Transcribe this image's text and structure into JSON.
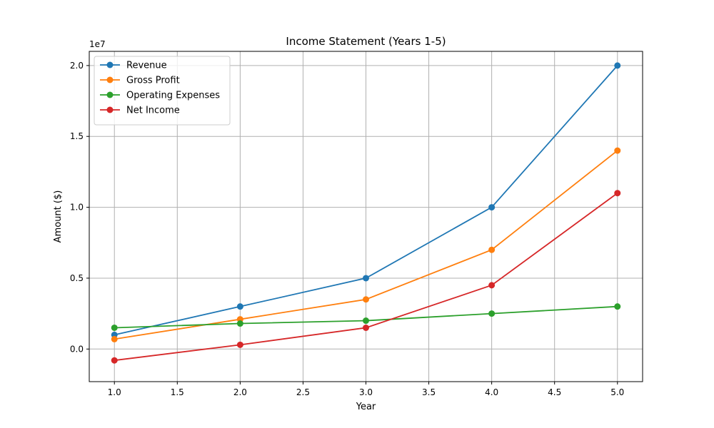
{
  "chart_data": {
    "type": "line",
    "title": "Income Statement (Years 1-5)",
    "xlabel": "Year",
    "ylabel": "Amount ($)",
    "y_scale_label": "1e7",
    "x": [
      1,
      2,
      3,
      4,
      5
    ],
    "xlim": [
      0.8,
      5.2
    ],
    "ylim": [
      -2300000,
      21000000
    ],
    "x_ticks": [
      1.0,
      1.5,
      2.0,
      2.5,
      3.0,
      3.5,
      4.0,
      4.5,
      5.0
    ],
    "x_tick_labels": [
      "1.0",
      "1.5",
      "2.0",
      "2.5",
      "3.0",
      "3.5",
      "4.0",
      "4.5",
      "5.0"
    ],
    "y_ticks": [
      0,
      5000000,
      10000000,
      15000000,
      20000000
    ],
    "y_tick_labels": [
      "0.0",
      "0.5",
      "1.0",
      "1.5",
      "2.0"
    ],
    "grid": true,
    "legend_position": "top-left",
    "series": [
      {
        "name": "Revenue",
        "color": "#1f77b4",
        "values": [
          1000000,
          3000000,
          5000000,
          10000000,
          20000000
        ]
      },
      {
        "name": "Gross Profit",
        "color": "#ff7f0e",
        "values": [
          700000,
          2100000,
          3500000,
          7000000,
          14000000
        ]
      },
      {
        "name": "Operating Expenses",
        "color": "#2ca02c",
        "values": [
          1500000,
          1800000,
          2000000,
          2500000,
          3000000
        ]
      },
      {
        "name": "Net Income",
        "color": "#d62728",
        "values": [
          -800000,
          300000,
          1500000,
          4500000,
          11000000
        ]
      }
    ]
  }
}
